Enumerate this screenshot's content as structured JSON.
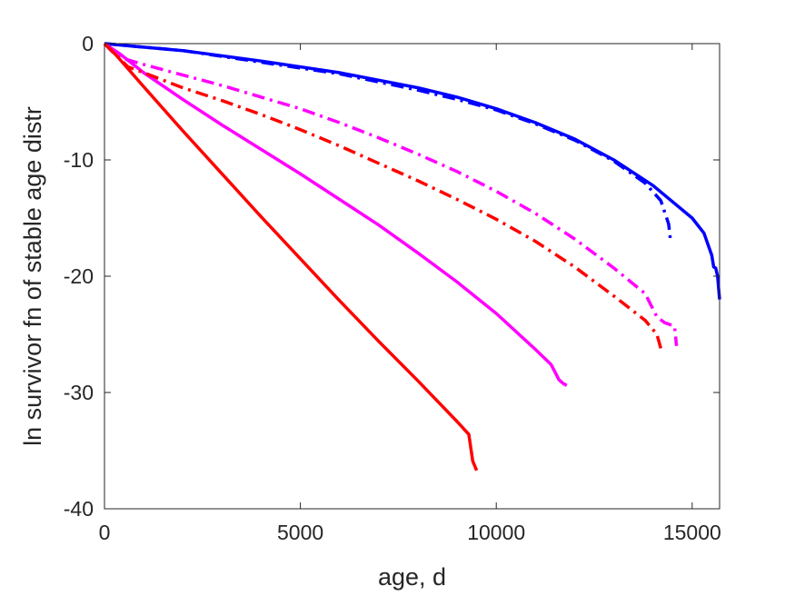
{
  "chart_data": {
    "type": "line",
    "title": "",
    "xlabel": "age, d",
    "ylabel": "ln survivor fn of stable age distr",
    "xlim": [
      0,
      15700
    ],
    "ylim": [
      -40,
      0
    ],
    "xticks": [
      0,
      5000,
      10000,
      15000
    ],
    "yticks": [
      0,
      -10,
      -20,
      -30,
      -40
    ],
    "grid": false,
    "legend": "none",
    "series": [
      {
        "color": "#0000ff",
        "dash": "solid",
        "points": [
          [
            0,
            0
          ],
          [
            2000,
            -0.6
          ],
          [
            4000,
            -1.5
          ],
          [
            6000,
            -2.5
          ],
          [
            8000,
            -3.8
          ],
          [
            9000,
            -4.6
          ],
          [
            10000,
            -5.6
          ],
          [
            11000,
            -6.8
          ],
          [
            12000,
            -8.2
          ],
          [
            13000,
            -10
          ],
          [
            14000,
            -12.2
          ],
          [
            15000,
            -15
          ],
          [
            15300,
            -16.3
          ],
          [
            15500,
            -18.2
          ],
          [
            15550,
            -19.2
          ],
          [
            15600,
            -19.3
          ],
          [
            15650,
            -20
          ],
          [
            15700,
            -22
          ]
        ]
      },
      {
        "color": "#0000ff",
        "dash": "dashdot",
        "points": [
          [
            0,
            0
          ],
          [
            2000,
            -0.6
          ],
          [
            4000,
            -1.6
          ],
          [
            6000,
            -2.6
          ],
          [
            8000,
            -4
          ],
          [
            9000,
            -4.8
          ],
          [
            10000,
            -5.7
          ],
          [
            11000,
            -6.9
          ],
          [
            12000,
            -8.3
          ],
          [
            13000,
            -10.1
          ],
          [
            13800,
            -12
          ],
          [
            14200,
            -13.5
          ],
          [
            14400,
            -15.5
          ],
          [
            14450,
            -17
          ]
        ]
      },
      {
        "color": "#ff00ff",
        "dash": "solid",
        "points": [
          [
            0,
            0
          ],
          [
            400,
            -0.9
          ],
          [
            1000,
            -2.5
          ],
          [
            2000,
            -4.8
          ],
          [
            3000,
            -7
          ],
          [
            4000,
            -9.1
          ],
          [
            5000,
            -11.2
          ],
          [
            6000,
            -13.4
          ],
          [
            7000,
            -15.6
          ],
          [
            8000,
            -18
          ],
          [
            9000,
            -20.5
          ],
          [
            10000,
            -23.2
          ],
          [
            11000,
            -26.3
          ],
          [
            11400,
            -27.6
          ],
          [
            11600,
            -28.9
          ],
          [
            11700,
            -29.2
          ],
          [
            11800,
            -29.4
          ]
        ]
      },
      {
        "color": "#ff00ff",
        "dash": "dashdot",
        "points": [
          [
            0,
            0
          ],
          [
            200,
            -0.7
          ],
          [
            500,
            -1.3
          ],
          [
            1000,
            -1.8
          ],
          [
            2000,
            -2.7
          ],
          [
            3000,
            -3.6
          ],
          [
            4000,
            -4.6
          ],
          [
            5000,
            -5.6
          ],
          [
            6000,
            -6.8
          ],
          [
            7000,
            -8.1
          ],
          [
            8000,
            -9.5
          ],
          [
            9000,
            -11
          ],
          [
            10000,
            -12.7
          ],
          [
            11000,
            -14.6
          ],
          [
            12000,
            -16.8
          ],
          [
            13000,
            -19.3
          ],
          [
            13800,
            -21.5
          ],
          [
            14100,
            -23.5
          ],
          [
            14300,
            -24
          ],
          [
            14550,
            -24.3
          ],
          [
            14600,
            -26
          ]
        ]
      },
      {
        "color": "#ff0000",
        "dash": "solid",
        "points": [
          [
            0,
            0
          ],
          [
            300,
            -1
          ],
          [
            1000,
            -3.7
          ],
          [
            2000,
            -7.5
          ],
          [
            3000,
            -11.2
          ],
          [
            4000,
            -14.9
          ],
          [
            5000,
            -18.5
          ],
          [
            6000,
            -22.1
          ],
          [
            7000,
            -25.6
          ],
          [
            8000,
            -29
          ],
          [
            9000,
            -32.5
          ],
          [
            9300,
            -33.6
          ],
          [
            9400,
            -35.9
          ],
          [
            9500,
            -36.7
          ]
        ]
      },
      {
        "color": "#ff0000",
        "dash": "dashdot",
        "points": [
          [
            0,
            0
          ],
          [
            300,
            -1
          ],
          [
            600,
            -2
          ],
          [
            1000,
            -2.5
          ],
          [
            2000,
            -3.8
          ],
          [
            3000,
            -4.9
          ],
          [
            4000,
            -6.1
          ],
          [
            5000,
            -7.4
          ],
          [
            6000,
            -8.8
          ],
          [
            7000,
            -10.3
          ],
          [
            8000,
            -11.8
          ],
          [
            9000,
            -13.4
          ],
          [
            10000,
            -15.1
          ],
          [
            11000,
            -17
          ],
          [
            12000,
            -19.2
          ],
          [
            13000,
            -21.7
          ],
          [
            13800,
            -23.8
          ],
          [
            14100,
            -25
          ],
          [
            14200,
            -26.2
          ],
          [
            14250,
            -26.6
          ]
        ]
      }
    ]
  }
}
